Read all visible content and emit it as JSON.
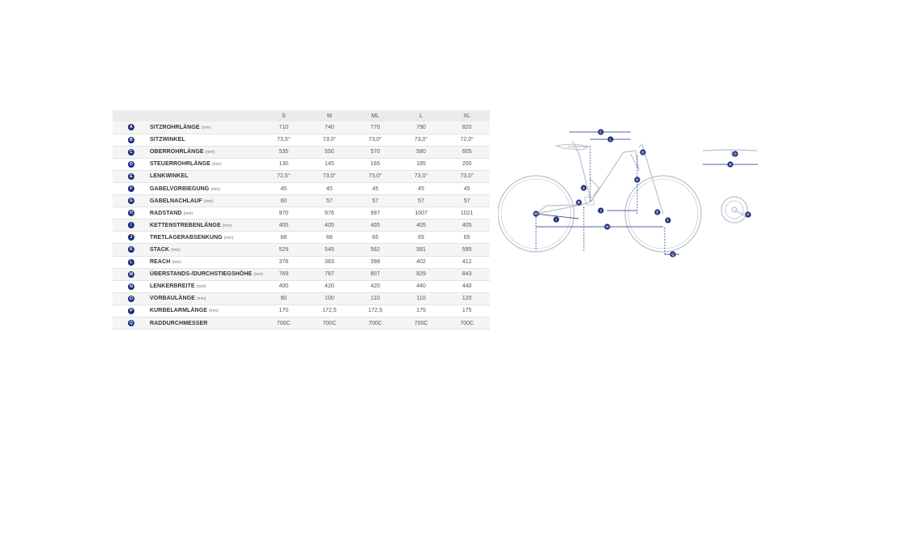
{
  "table": {
    "sizes": [
      "S",
      "M",
      "ML",
      "L",
      "XL"
    ],
    "rows": [
      {
        "letter": "A",
        "name": "SITZROHRLÄNGE",
        "unit": "(mm)",
        "values": [
          "710",
          "740",
          "770",
          "790",
          "820"
        ]
      },
      {
        "letter": "B",
        "name": "SITZWINKEL",
        "unit": "",
        "values": [
          "73,5°",
          "73,0°",
          "73,0°",
          "73,0°",
          "72,0°"
        ]
      },
      {
        "letter": "C",
        "name": "OBERROHRLÄNGE",
        "unit": "(mm)",
        "values": [
          "535",
          "550",
          "570",
          "580",
          "605"
        ]
      },
      {
        "letter": "D",
        "name": "STEUERROHRLÄNGE",
        "unit": "(mm)",
        "values": [
          "130",
          "145",
          "165",
          "185",
          "200"
        ]
      },
      {
        "letter": "E",
        "name": "LENKWINKEL",
        "unit": "",
        "values": [
          "72,5°",
          "73,0°",
          "73,0°",
          "73,0°",
          "73,0°"
        ]
      },
      {
        "letter": "F",
        "name": "GABELVORBIEGUNG",
        "unit": "(mm)",
        "values": [
          "45",
          "45",
          "45",
          "45",
          "45"
        ]
      },
      {
        "letter": "G",
        "name": "GABELNACHLAUF",
        "unit": "(mm)",
        "values": [
          "60",
          "57",
          "57",
          "57",
          "57"
        ]
      },
      {
        "letter": "H",
        "name": "RADSTAND",
        "unit": "(mm)",
        "values": [
          "970",
          "976",
          "997",
          "1007",
          "1021"
        ]
      },
      {
        "letter": "I",
        "name": "KETTENSTREBENLÄNGE",
        "unit": "(mm)",
        "values": [
          "405",
          "405",
          "405",
          "405",
          "405"
        ]
      },
      {
        "letter": "J",
        "name": "TRETLAGERABSENKUNG",
        "unit": "(mm)",
        "values": [
          "68",
          "68",
          "65",
          "65",
          "65"
        ]
      },
      {
        "letter": "K",
        "name": "STACK",
        "unit": "(mm)",
        "values": [
          "529",
          "545",
          "562",
          "581",
          "595"
        ]
      },
      {
        "letter": "L",
        "name": "REACH",
        "unit": "(mm)",
        "values": [
          "378",
          "383",
          "398",
          "402",
          "412"
        ]
      },
      {
        "letter": "M",
        "name": "ÜBERSTANDS-/DURCHSTIEGSHÖHE",
        "unit": "(mm)",
        "values": [
          "769",
          "787",
          "807",
          "829",
          "843"
        ]
      },
      {
        "letter": "N",
        "name": "LENKERBREITE",
        "unit": "(mm)",
        "values": [
          "400",
          "420",
          "420",
          "440",
          "440"
        ]
      },
      {
        "letter": "O",
        "name": "VORBAULÄNGE",
        "unit": "(mm)",
        "values": [
          "90",
          "100",
          "110",
          "110",
          "120"
        ]
      },
      {
        "letter": "P",
        "name": "KURBELARMLÄNGE",
        "unit": "(mm)",
        "values": [
          "170",
          "172,5",
          "172,5",
          "175",
          "175"
        ]
      },
      {
        "letter": "Q",
        "name": "RADDURCHMESSER",
        "unit": "",
        "values": [
          "700C",
          "700C",
          "700C",
          "700C",
          "700C"
        ]
      }
    ]
  },
  "diagram": {
    "markers": [
      "A",
      "B",
      "C",
      "D",
      "E",
      "F",
      "G",
      "H",
      "I",
      "J",
      "K",
      "L",
      "M",
      "N",
      "O",
      "P",
      "Q"
    ]
  },
  "colors": {
    "badge": "#1d2d7a",
    "measure_line": "#1d2d7a",
    "bike_outline": "#b9c0cc",
    "header_bg": "#ebebeb",
    "row_alt_bg": "#f5f5f5"
  }
}
